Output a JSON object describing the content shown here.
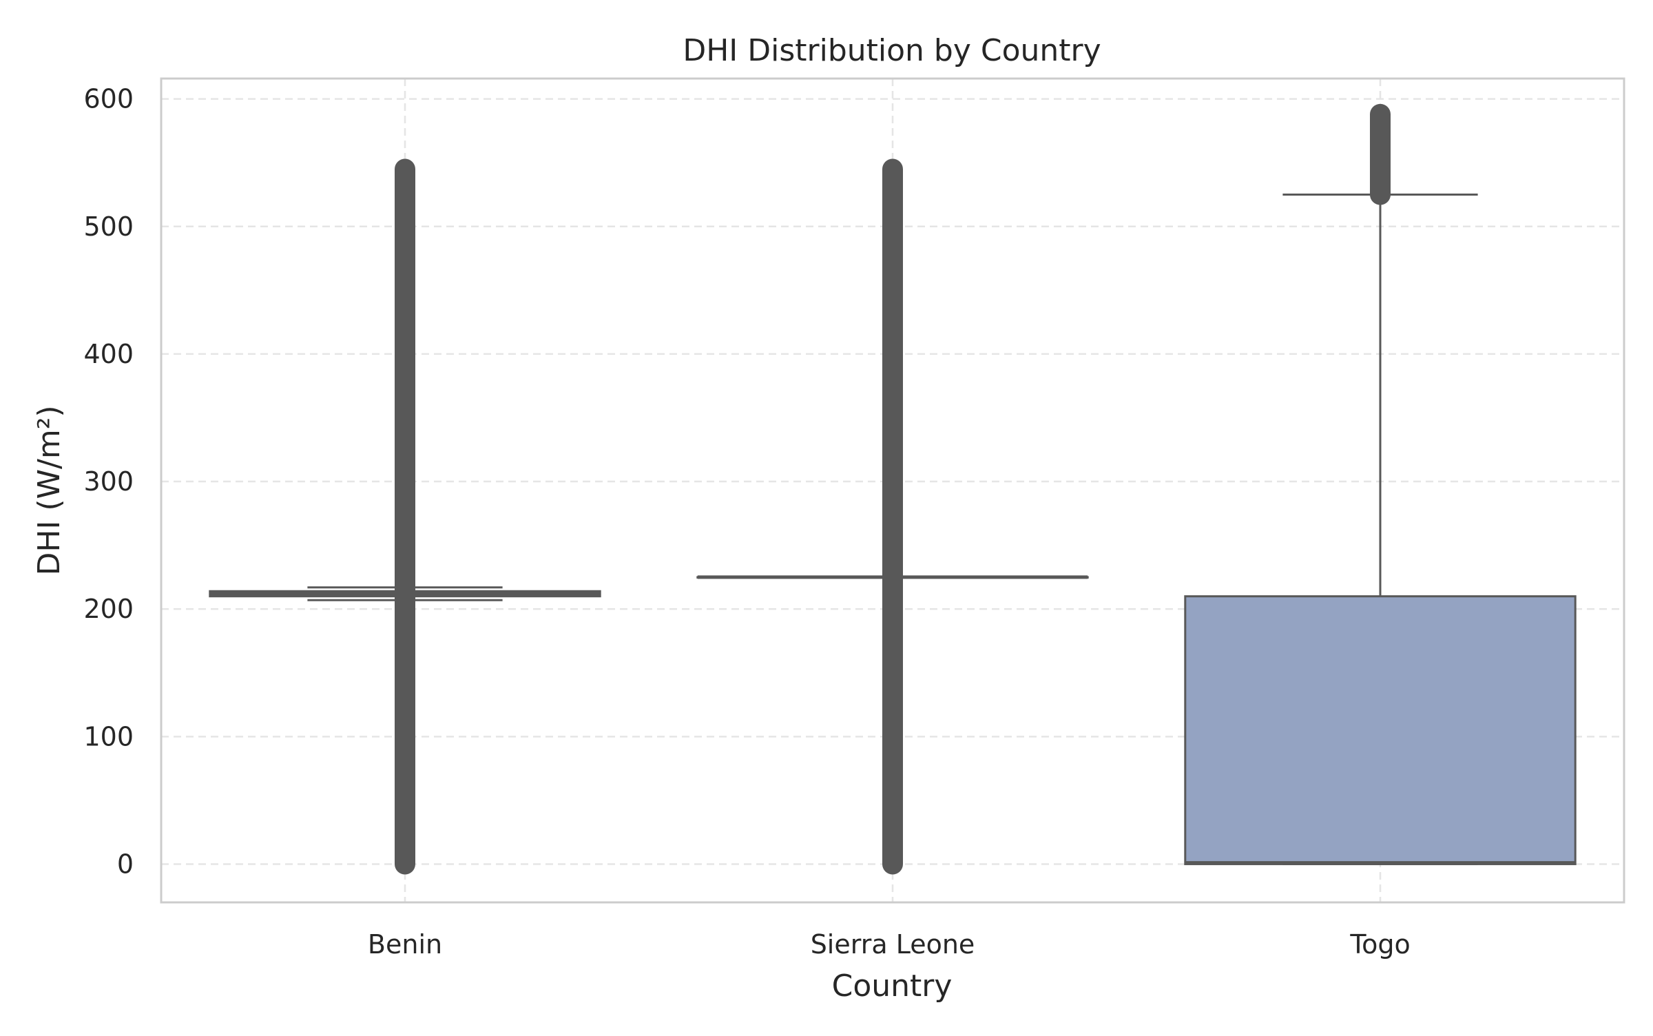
{
  "chart_data": {
    "type": "box",
    "title": "DHI Distribution by Country",
    "xlabel": "Country",
    "ylabel": "DHI (W/m²)",
    "categories": [
      "Benin",
      "Sierra Leone",
      "Togo"
    ],
    "ylim": [
      -30,
      616
    ],
    "yticks": [
      0,
      100,
      200,
      300,
      400,
      500,
      600
    ],
    "grid": true,
    "boxes": [
      {
        "category": "Benin",
        "q1": 210,
        "median": 212,
        "q3": 214,
        "whisker_low": 207,
        "whisker_high": 217,
        "outliers_range": [
          0,
          545
        ],
        "color": "#66c2a5"
      },
      {
        "category": "Sierra Leone",
        "q1": 225,
        "median": 225,
        "q3": 225,
        "whisker_low": 225,
        "whisker_high": 225,
        "outliers_range": [
          0,
          545
        ],
        "color": "#fc8d62"
      },
      {
        "category": "Togo",
        "q1": 0,
        "median": 1,
        "q3": 210,
        "whisker_low": 0,
        "whisker_high": 525,
        "outliers_range": [
          525,
          588
        ],
        "color": "#94a3c2"
      }
    ],
    "colors": {
      "grid": "#e5e5e5",
      "spine": "#cccccc",
      "box_edge": "#585858",
      "outlier": "#585858"
    }
  }
}
